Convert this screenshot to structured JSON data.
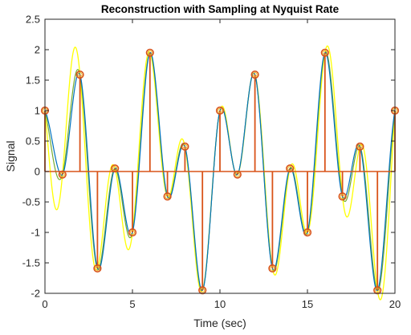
{
  "chart_data": {
    "type": "line",
    "title": "Reconstruction with Sampling at Nyquist Rate",
    "xlabel": "Time (sec)",
    "ylabel": "Signal",
    "xlim": [
      0,
      20
    ],
    "ylim": [
      -2,
      2.5
    ],
    "xticks": [
      "0",
      "5",
      "10",
      "15",
      "20"
    ],
    "yticks": [
      "-2",
      "-1.5",
      "-1",
      "-0.5",
      "0",
      "0.5",
      "1",
      "1.5",
      "2",
      "2.5"
    ],
    "grid": false,
    "legend": "none",
    "colors": {
      "original": "#0072BD",
      "reconstructed": "#FFFF00",
      "stems": "#D95319",
      "markers": "#EDB120",
      "reconstructed_dense": "#77AC30"
    },
    "samples": {
      "t": [
        0,
        1,
        2,
        3,
        4,
        5,
        6,
        7,
        8,
        9,
        10,
        11,
        12,
        13,
        14,
        15,
        16,
        17,
        18,
        19,
        20
      ],
      "values": [
        1.0,
        -0.05,
        1.59,
        -1.59,
        0.05,
        -1.0,
        1.95,
        -0.41,
        0.41,
        -1.95,
        1.0,
        -0.05,
        1.59,
        -1.59,
        0.05,
        -1.0,
        1.95,
        -0.41,
        0.41,
        -1.95,
        1.0
      ]
    },
    "series": [
      {
        "values_ref": "continuous signal (blue)"
      },
      {
        "values_ref": "sinc reconstruction (yellow)"
      },
      {
        "values_ref": "sampled stems (orange)"
      }
    ]
  }
}
